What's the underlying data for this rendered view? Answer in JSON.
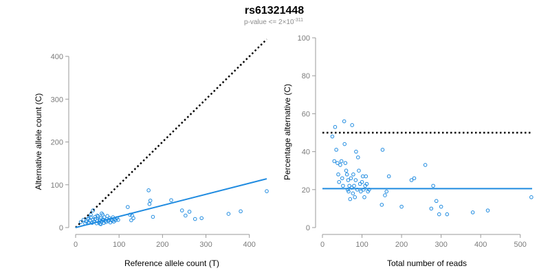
{
  "title": "rs61321448",
  "subtitle": {
    "text": "p-value <= 2×10",
    "exponent": "-311"
  },
  "colors": {
    "points": "#1f8be0",
    "fit_line": "#1f8be0",
    "reference_line": "#000000",
    "axes": "#9a9a9a",
    "tick_labels": "#7a7a7a"
  },
  "chart_data": [
    {
      "type": "scatter",
      "xlabel": "Reference allele count (T)",
      "ylabel": "Alternative allele count (C)",
      "xlim": [
        0,
        440
      ],
      "ylim": [
        0,
        400
      ],
      "xticks": [
        0,
        100,
        200,
        300,
        400
      ],
      "yticks": [
        0,
        100,
        200,
        300,
        400
      ],
      "grid": false,
      "reference_line": {
        "style": "dotted",
        "x": [
          0,
          440
        ],
        "y": [
          0,
          440
        ]
      },
      "fit_line": {
        "style": "solid",
        "x": [
          0,
          440
        ],
        "y": [
          0,
          114
        ]
      },
      "points": [
        [
          12,
          13
        ],
        [
          18,
          18
        ],
        [
          22,
          10
        ],
        [
          25,
          14
        ],
        [
          28,
          20
        ],
        [
          30,
          12
        ],
        [
          33,
          16
        ],
        [
          35,
          24
        ],
        [
          38,
          11
        ],
        [
          40,
          18
        ],
        [
          42,
          14
        ],
        [
          45,
          20
        ],
        [
          48,
          10
        ],
        [
          50,
          16
        ],
        [
          52,
          26
        ],
        [
          54,
          12
        ],
        [
          55,
          18
        ],
        [
          57,
          22
        ],
        [
          58,
          8
        ],
        [
          60,
          14
        ],
        [
          62,
          30
        ],
        [
          63,
          19
        ],
        [
          65,
          11
        ],
        [
          66,
          24
        ],
        [
          68,
          16
        ],
        [
          70,
          13
        ],
        [
          72,
          20
        ],
        [
          73,
          27
        ],
        [
          75,
          15
        ],
        [
          77,
          18
        ],
        [
          78,
          22
        ],
        [
          80,
          12
        ],
        [
          82,
          19
        ],
        [
          84,
          16
        ],
        [
          86,
          24
        ],
        [
          88,
          14
        ],
        [
          90,
          20
        ],
        [
          92,
          17
        ],
        [
          95,
          22
        ],
        [
          98,
          18
        ],
        [
          40,
          40
        ],
        [
          45,
          25
        ],
        [
          50,
          28
        ],
        [
          35,
          30
        ],
        [
          60,
          33
        ],
        [
          30,
          22
        ],
        [
          56,
          9
        ],
        [
          64,
          17
        ],
        [
          120,
          48
        ],
        [
          125,
          30
        ],
        [
          128,
          17
        ],
        [
          130,
          28
        ],
        [
          133,
          22
        ],
        [
          168,
          87
        ],
        [
          170,
          55
        ],
        [
          172,
          63
        ],
        [
          178,
          25
        ],
        [
          220,
          64
        ],
        [
          245,
          40
        ],
        [
          253,
          28
        ],
        [
          262,
          37
        ],
        [
          275,
          20
        ],
        [
          290,
          22
        ],
        [
          352,
          32
        ],
        [
          380,
          38
        ],
        [
          440,
          85
        ]
      ]
    },
    {
      "type": "scatter",
      "xlabel": "Total number of reads",
      "ylabel": "Percentage alternative (C)",
      "xlim": [
        0,
        530
      ],
      "ylim": [
        0,
        100
      ],
      "xticks": [
        0,
        100,
        200,
        300,
        400,
        500
      ],
      "yticks": [
        0,
        20,
        40,
        60,
        80,
        100
      ],
      "grid": false,
      "reference_line": {
        "style": "dotted",
        "x": [
          0,
          530
        ],
        "y": [
          50,
          50
        ]
      },
      "fit_line": {
        "style": "solid",
        "x": [
          0,
          530
        ],
        "y": [
          20.5,
          20.5
        ]
      },
      "points": [
        [
          25,
          48
        ],
        [
          30,
          35
        ],
        [
          32,
          53
        ],
        [
          35,
          41
        ],
        [
          38,
          34
        ],
        [
          40,
          28
        ],
        [
          42,
          24
        ],
        [
          45,
          33
        ],
        [
          48,
          35
        ],
        [
          50,
          26
        ],
        [
          52,
          22
        ],
        [
          55,
          56
        ],
        [
          56,
          44
        ],
        [
          58,
          34
        ],
        [
          60,
          30
        ],
        [
          62,
          28
        ],
        [
          64,
          20
        ],
        [
          65,
          25
        ],
        [
          66,
          19
        ],
        [
          68,
          22
        ],
        [
          70,
          15
        ],
        [
          72,
          26
        ],
        [
          74,
          21
        ],
        [
          75,
          54
        ],
        [
          77,
          18
        ],
        [
          78,
          28
        ],
        [
          80,
          22
        ],
        [
          82,
          16
        ],
        [
          84,
          25
        ],
        [
          85,
          40
        ],
        [
          88,
          20
        ],
        [
          90,
          37
        ],
        [
          92,
          30
        ],
        [
          95,
          23
        ],
        [
          97,
          19
        ],
        [
          100,
          24
        ],
        [
          102,
          27
        ],
        [
          104,
          20
        ],
        [
          106,
          16
        ],
        [
          108,
          22
        ],
        [
          110,
          27
        ],
        [
          112,
          23
        ],
        [
          115,
          19
        ],
        [
          118,
          20
        ],
        [
          150,
          12
        ],
        [
          152,
          41
        ],
        [
          158,
          17
        ],
        [
          162,
          19
        ],
        [
          168,
          27
        ],
        [
          200,
          11
        ],
        [
          225,
          25
        ],
        [
          232,
          26
        ],
        [
          260,
          33
        ],
        [
          275,
          10
        ],
        [
          280,
          22
        ],
        [
          288,
          14
        ],
        [
          295,
          7
        ],
        [
          300,
          11
        ],
        [
          315,
          7
        ],
        [
          380,
          8
        ],
        [
          418,
          9
        ],
        [
          528,
          16
        ]
      ]
    }
  ]
}
